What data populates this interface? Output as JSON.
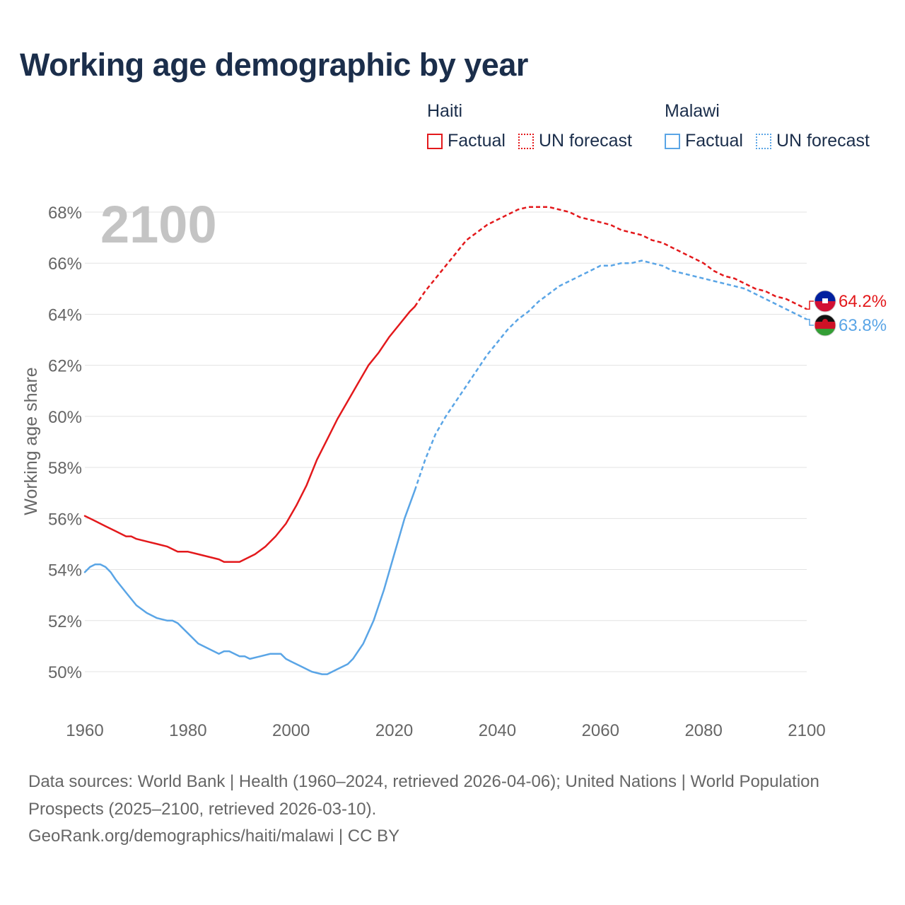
{
  "title": "Working age demographic by year",
  "footer": {
    "sources": "Data sources: World Bank | Health (1960–2024, retrieved 2026-04-06); United Nations | World Population Prospects (2025–2100, retrieved 2026-03-10).",
    "credit": "GeoRank.org/demographics/haiti/malawi | CC BY"
  },
  "legend": {
    "groups": [
      {
        "name": "Haiti",
        "color": "#e3191c",
        "factual_label": "Factual",
        "forecast_label": "UN forecast"
      },
      {
        "name": "Malawi",
        "color": "#5aa5e6",
        "factual_label": "Factual",
        "forecast_label": "UN forecast"
      }
    ]
  },
  "chart_data": {
    "type": "line",
    "title": "Working age demographic by year",
    "xlabel": "",
    "ylabel": "Working age share",
    "xlim": [
      1960,
      2100
    ],
    "ylim": [
      49,
      69
    ],
    "x_ticks": [
      1960,
      1980,
      2000,
      2020,
      2040,
      2060,
      2080,
      2100
    ],
    "x_tick_labels": [
      "1960",
      "1980",
      "2000",
      "2020",
      "2040",
      "2060",
      "2080",
      "2100"
    ],
    "y_ticks": [
      50,
      52,
      54,
      56,
      58,
      60,
      62,
      64,
      66,
      68
    ],
    "y_tick_labels": [
      "50%",
      "52%",
      "54%",
      "56%",
      "58%",
      "60%",
      "62%",
      "64%",
      "66%",
      "68%"
    ],
    "grid": true,
    "year_watermark": "2100",
    "forecast_start": 2024,
    "series": [
      {
        "name": "Haiti",
        "color": "#e3191c",
        "end_label": "64.2%",
        "factual": {
          "x": [
            1960,
            1962,
            1964,
            1966,
            1968,
            1969,
            1970,
            1972,
            1974,
            1976,
            1978,
            1980,
            1982,
            1984,
            1986,
            1987,
            1988,
            1990,
            1991,
            1993,
            1995,
            1997,
            1999,
            2001,
            2003,
            2005,
            2007,
            2009,
            2011,
            2013,
            2015,
            2017,
            2019,
            2021,
            2023,
            2024
          ],
          "y": [
            56.1,
            55.9,
            55.7,
            55.5,
            55.3,
            55.3,
            55.2,
            55.1,
            55.0,
            54.9,
            54.7,
            54.7,
            54.6,
            54.5,
            54.4,
            54.3,
            54.3,
            54.3,
            54.4,
            54.6,
            54.9,
            55.3,
            55.8,
            56.5,
            57.3,
            58.3,
            59.1,
            59.9,
            60.6,
            61.3,
            62.0,
            62.5,
            63.1,
            63.6,
            64.1,
            64.3
          ]
        },
        "forecast": {
          "x": [
            2024,
            2026,
            2028,
            2030,
            2032,
            2034,
            2036,
            2038,
            2040,
            2042,
            2044,
            2046,
            2048,
            2050,
            2052,
            2054,
            2056,
            2058,
            2060,
            2062,
            2064,
            2066,
            2068,
            2070,
            2072,
            2074,
            2076,
            2078,
            2080,
            2082,
            2084,
            2086,
            2088,
            2090,
            2092,
            2094,
            2096,
            2098,
            2100
          ],
          "y": [
            64.3,
            64.9,
            65.4,
            65.9,
            66.4,
            66.9,
            67.2,
            67.5,
            67.7,
            67.9,
            68.1,
            68.2,
            68.2,
            68.2,
            68.1,
            68.0,
            67.8,
            67.7,
            67.6,
            67.5,
            67.3,
            67.2,
            67.1,
            66.9,
            66.8,
            66.6,
            66.4,
            66.2,
            66.0,
            65.7,
            65.5,
            65.4,
            65.2,
            65.0,
            64.9,
            64.7,
            64.6,
            64.4,
            64.2
          ]
        }
      },
      {
        "name": "Malawi",
        "color": "#5aa5e6",
        "end_label": "63.8%",
        "factual": {
          "x": [
            1960,
            1961,
            1962,
            1963,
            1964,
            1965,
            1966,
            1968,
            1970,
            1972,
            1974,
            1976,
            1977,
            1978,
            1980,
            1982,
            1984,
            1986,
            1987,
            1988,
            1990,
            1991,
            1992,
            1994,
            1996,
            1998,
            1999,
            2000,
            2002,
            2004,
            2006,
            2007,
            2009,
            2011,
            2012,
            2014,
            2016,
            2018,
            2020,
            2022,
            2024
          ],
          "y": [
            53.9,
            54.1,
            54.2,
            54.2,
            54.1,
            53.9,
            53.6,
            53.1,
            52.6,
            52.3,
            52.1,
            52.0,
            52.0,
            51.9,
            51.5,
            51.1,
            50.9,
            50.7,
            50.8,
            50.8,
            50.6,
            50.6,
            50.5,
            50.6,
            50.7,
            50.7,
            50.5,
            50.4,
            50.2,
            50.0,
            49.9,
            49.9,
            50.1,
            50.3,
            50.5,
            51.1,
            52.0,
            53.2,
            54.6,
            56.0,
            57.1
          ]
        },
        "forecast": {
          "x": [
            2024,
            2026,
            2028,
            2030,
            2032,
            2034,
            2036,
            2038,
            2040,
            2042,
            2044,
            2046,
            2048,
            2050,
            2052,
            2054,
            2056,
            2058,
            2060,
            2062,
            2064,
            2066,
            2068,
            2070,
            2072,
            2074,
            2076,
            2078,
            2080,
            2082,
            2084,
            2086,
            2088,
            2090,
            2092,
            2094,
            2096,
            2098,
            2100
          ],
          "y": [
            57.1,
            58.3,
            59.3,
            60.0,
            60.6,
            61.2,
            61.8,
            62.4,
            62.9,
            63.4,
            63.8,
            64.1,
            64.5,
            64.8,
            65.1,
            65.3,
            65.5,
            65.7,
            65.9,
            65.9,
            66.0,
            66.0,
            66.1,
            66.0,
            65.9,
            65.7,
            65.6,
            65.5,
            65.4,
            65.3,
            65.2,
            65.1,
            65.0,
            64.8,
            64.6,
            64.4,
            64.2,
            64.0,
            63.8
          ]
        }
      }
    ]
  }
}
